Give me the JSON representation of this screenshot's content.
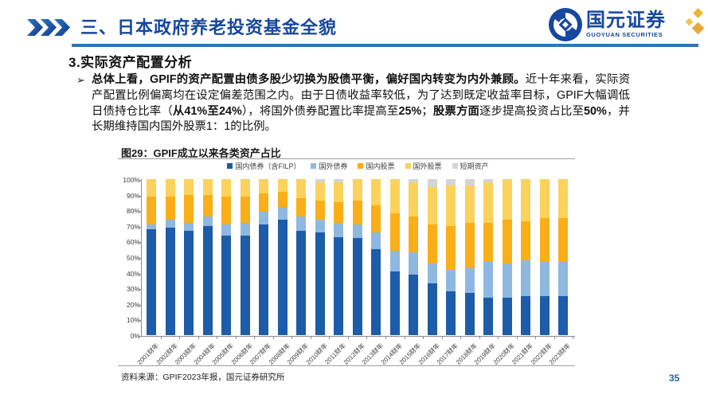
{
  "header": {
    "title": "三、日本政府养老投资基金全貌",
    "logo_cn": "国元证券",
    "logo_en": "GUOYUAN SECURITIES"
  },
  "section": {
    "heading": "3.实际资产配置分析",
    "bullet": "➢",
    "paragraph_segments": [
      {
        "text": "总体上看，GPIF的资产配置由债多股少切换为股债平衡，偏好国内转变为内外兼顾。",
        "bold": true
      },
      {
        "text": "近十年来看，实际资产配置比例偏离均在设定偏差范围之内。由于日债收益率较低，为了达到既定收益率目标，GPIF大幅调低日债持仓比率（",
        "bold": false
      },
      {
        "text": "从41%至24%",
        "bold": true
      },
      {
        "text": "），将国外债券配置比率提高至",
        "bold": false
      },
      {
        "text": "25%",
        "bold": true
      },
      {
        "text": "；",
        "bold": false
      },
      {
        "text": "股票方面",
        "bold": true
      },
      {
        "text": "逐步提高投资占比至",
        "bold": false
      },
      {
        "text": "50%",
        "bold": true
      },
      {
        "text": "，并长期维持国内国外股票1：1的比例。",
        "bold": false
      }
    ]
  },
  "figure": {
    "title": "图29：GPIF成立以来各类资产占比",
    "source": "资料来源：GPIF2023年报，国元证券研究所"
  },
  "page_number": "35",
  "colors": {
    "accent_blue": "#17479E",
    "rule_blue": "#2E74B6",
    "gold": "#F0B432"
  },
  "chart_data": {
    "type": "bar",
    "stacked": true,
    "unit": "percent",
    "title": "图29：GPIF成立以来各类资产占比",
    "categories": [
      "2001财年",
      "2002财年",
      "2003财年",
      "2004财年",
      "2005财年",
      "2006财年",
      "2007财年",
      "2008财年",
      "2009财年",
      "2010财年",
      "2011财年",
      "2012财年",
      "2013财年",
      "2014财年",
      "2015财年",
      "2016财年",
      "2017财年",
      "2018财年",
      "2019财年",
      "2020财年",
      "2021财年",
      "2022财年",
      "2023财年"
    ],
    "series": [
      {
        "name": "国内债券（含FILP）",
        "color": "#1D5CA8",
        "values": [
          68,
          69,
          67,
          70,
          64,
          64,
          71,
          74,
          67,
          66,
          63,
          62,
          55,
          41,
          39,
          33,
          28,
          27,
          24,
          24,
          25,
          25,
          25
        ]
      },
      {
        "name": "国外债券",
        "color": "#8FB8E0",
        "values": [
          3,
          5,
          5,
          6,
          7,
          8,
          8,
          8,
          9,
          8,
          9,
          9,
          11,
          13,
          14,
          13,
          14,
          16,
          23,
          22,
          23,
          22,
          22
        ]
      },
      {
        "name": "国内股票",
        "color": "#FAAE17",
        "values": [
          18,
          15,
          18,
          14,
          18,
          17,
          12,
          10,
          12,
          12,
          13,
          15,
          17,
          24,
          23,
          25,
          28,
          29,
          25,
          28,
          25,
          28,
          28
        ]
      },
      {
        "name": "国外股票",
        "color": "#FBD25C",
        "values": [
          11,
          11,
          10,
          10,
          11,
          11,
          9,
          8,
          12,
          12,
          13,
          14,
          17,
          22,
          22,
          24,
          26,
          24,
          26,
          26,
          27,
          25,
          25
        ]
      },
      {
        "name": "短期资产",
        "color": "#D4D4D4",
        "values": [
          0,
          0,
          0,
          0,
          0,
          0,
          0,
          0,
          0,
          2,
          2,
          0,
          0,
          0,
          2,
          5,
          4,
          4,
          2,
          0,
          0,
          0,
          0
        ]
      }
    ],
    "ylim": [
      0,
      100
    ],
    "y_ticks": [
      "0%",
      "10%",
      "20%",
      "30%",
      "40%",
      "50%",
      "60%",
      "70%",
      "80%",
      "90%",
      "100%"
    ],
    "legend_position": "top",
    "grid": false,
    "xlabel": "",
    "ylabel": ""
  }
}
